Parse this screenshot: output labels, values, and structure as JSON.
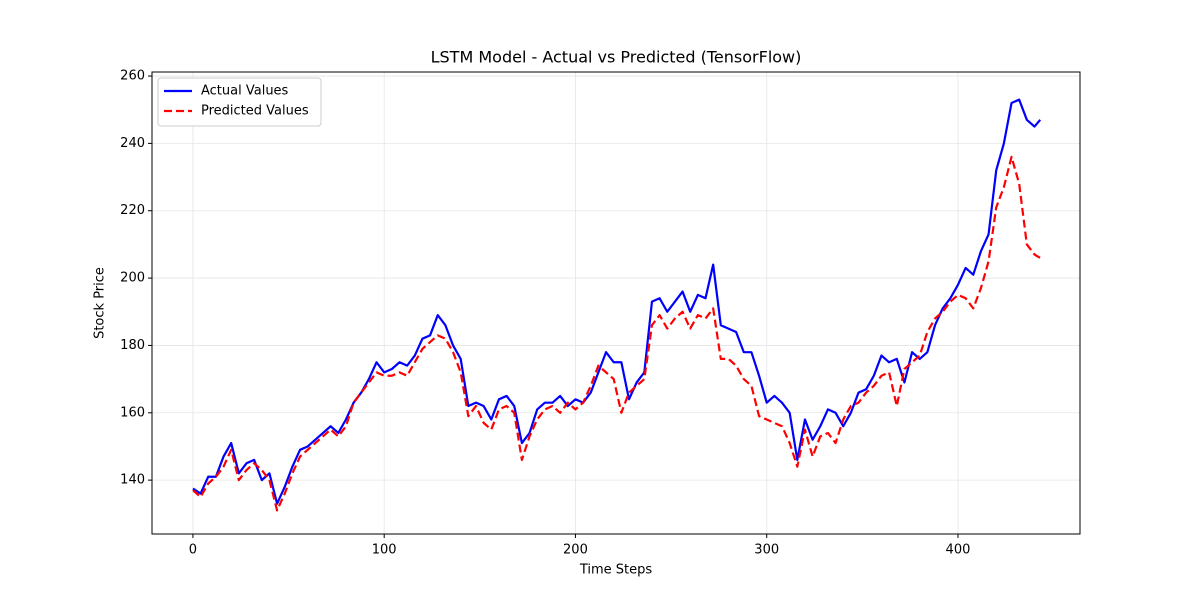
{
  "chart_data": {
    "type": "line",
    "title": "LSTM Model - Actual vs Predicted (TensorFlow)",
    "x_label": "Time Steps",
    "y_label": "Stock Price",
    "x": [
      0,
      4,
      8,
      12,
      16,
      20,
      24,
      28,
      32,
      36,
      40,
      44,
      48,
      52,
      56,
      60,
      64,
      68,
      72,
      76,
      80,
      84,
      88,
      92,
      96,
      100,
      104,
      108,
      112,
      116,
      120,
      124,
      128,
      132,
      136,
      140,
      144,
      148,
      152,
      156,
      160,
      164,
      168,
      172,
      176,
      180,
      184,
      188,
      192,
      196,
      200,
      204,
      208,
      212,
      216,
      220,
      224,
      228,
      232,
      236,
      240,
      244,
      248,
      252,
      256,
      260,
      264,
      268,
      272,
      276,
      280,
      284,
      288,
      292,
      296,
      300,
      304,
      308,
      312,
      316,
      320,
      324,
      328,
      332,
      336,
      340,
      344,
      348,
      352,
      356,
      360,
      364,
      368,
      372,
      376,
      380,
      384,
      388,
      392,
      396,
      400,
      404,
      408,
      412,
      416,
      420,
      424,
      428,
      432,
      436,
      440,
      443
    ],
    "series": [
      {
        "name": "Actual Values",
        "color": "#0000ff",
        "linestyle": "solid",
        "values": [
          137.5,
          136,
          141,
          141,
          147,
          151,
          142,
          145,
          146,
          140,
          142,
          133,
          138,
          144,
          149,
          150,
          152,
          154,
          156,
          154,
          158,
          163,
          166,
          170,
          175,
          172,
          173,
          175,
          174,
          177,
          182,
          183,
          189,
          186,
          180,
          176,
          162,
          163,
          162,
          158,
          164,
          165,
          162,
          151,
          154,
          161,
          163,
          163,
          165,
          162,
          164,
          163,
          166,
          172,
          178,
          175,
          175,
          164,
          169,
          172,
          193,
          194,
          190,
          193,
          196,
          190,
          195,
          194,
          204,
          186,
          185,
          184,
          178,
          178,
          171,
          163,
          165,
          163,
          160,
          146,
          158,
          152,
          156,
          161,
          160,
          156,
          160,
          166,
          167,
          171,
          177,
          175,
          176,
          169,
          178,
          176,
          178,
          186,
          191,
          194,
          198,
          203,
          201,
          208,
          213,
          232,
          240,
          252,
          253,
          247,
          245,
          247
        ]
      },
      {
        "name": "Predicted Values",
        "color": "#ff0000",
        "linestyle": "dashed",
        "values": [
          137,
          135,
          139,
          141,
          144,
          149,
          140,
          143,
          145,
          143,
          140,
          131,
          136,
          142,
          147,
          149,
          151,
          153,
          155,
          153,
          156,
          163,
          166,
          169,
          172,
          171,
          171,
          172,
          171,
          175,
          179,
          181,
          183,
          182,
          178,
          172,
          159,
          162,
          157,
          155,
          161,
          162,
          160,
          146,
          153,
          158,
          161,
          162,
          160,
          163,
          161,
          163,
          168,
          174,
          172,
          170,
          160,
          166,
          168,
          170,
          186,
          189,
          185,
          188,
          190,
          185,
          189,
          188,
          191,
          176,
          176,
          174,
          170,
          168,
          159,
          158,
          157,
          156,
          151,
          144,
          155,
          147,
          153,
          154,
          151,
          158,
          162,
          163,
          166,
          168,
          171,
          172,
          162,
          173,
          175,
          177,
          184,
          188,
          190,
          193,
          195,
          194,
          191,
          197,
          205,
          221,
          227,
          236,
          228,
          210,
          207,
          206
        ]
      }
    ],
    "xlim": [
      -21.4,
      463.8
    ],
    "ylim": [
      124,
      261.2
    ],
    "xticks": [
      0,
      100,
      200,
      300,
      400
    ],
    "yticks": [
      140,
      160,
      180,
      200,
      220,
      240,
      260
    ],
    "grid": true,
    "legend": "upper left"
  }
}
